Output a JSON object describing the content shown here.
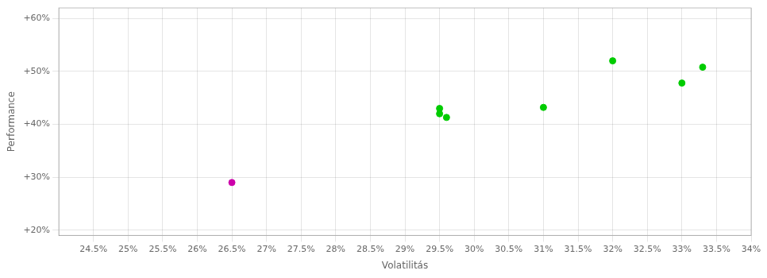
{
  "chart_data": {
    "type": "scatter",
    "xlabel": "Volatilitás",
    "ylabel": "Performance",
    "xlim": [
      0.24,
      0.34
    ],
    "ylim": [
      0.19,
      0.62
    ],
    "xticks": [
      {
        "value": 0.245,
        "label": "24.5%"
      },
      {
        "value": 0.25,
        "label": "25%"
      },
      {
        "value": 0.255,
        "label": "25.5%"
      },
      {
        "value": 0.26,
        "label": "26%"
      },
      {
        "value": 0.265,
        "label": "26.5%"
      },
      {
        "value": 0.27,
        "label": "27%"
      },
      {
        "value": 0.275,
        "label": "27.5%"
      },
      {
        "value": 0.28,
        "label": "28%"
      },
      {
        "value": 0.285,
        "label": "28.5%"
      },
      {
        "value": 0.29,
        "label": "29%"
      },
      {
        "value": 0.295,
        "label": "29.5%"
      },
      {
        "value": 0.3,
        "label": "30%"
      },
      {
        "value": 0.305,
        "label": "30.5%"
      },
      {
        "value": 0.31,
        "label": "31%"
      },
      {
        "value": 0.315,
        "label": "31.5%"
      },
      {
        "value": 0.32,
        "label": "32%"
      },
      {
        "value": 0.325,
        "label": "32.5%"
      },
      {
        "value": 0.33,
        "label": "33%"
      },
      {
        "value": 0.335,
        "label": "33.5%"
      },
      {
        "value": 0.34,
        "label": "34%"
      }
    ],
    "yticks": [
      {
        "value": 0.2,
        "label": "+20%"
      },
      {
        "value": 0.3,
        "label": "+30%"
      },
      {
        "value": 0.4,
        "label": "+40%"
      },
      {
        "value": 0.5,
        "label": "+50%"
      },
      {
        "value": 0.6,
        "label": "+60%"
      }
    ],
    "grid": true,
    "marker": "circle",
    "series": [
      {
        "color": "#00cc00",
        "x": [
          0.295,
          0.295,
          0.296,
          0.31,
          0.32,
          0.33,
          0.333
        ],
        "values": [
          0.43,
          0.42,
          0.413,
          0.432,
          0.52,
          0.478,
          0.508
        ]
      },
      {
        "color": "#cc00aa",
        "x": [
          0.265
        ],
        "values": [
          0.29
        ]
      }
    ]
  }
}
